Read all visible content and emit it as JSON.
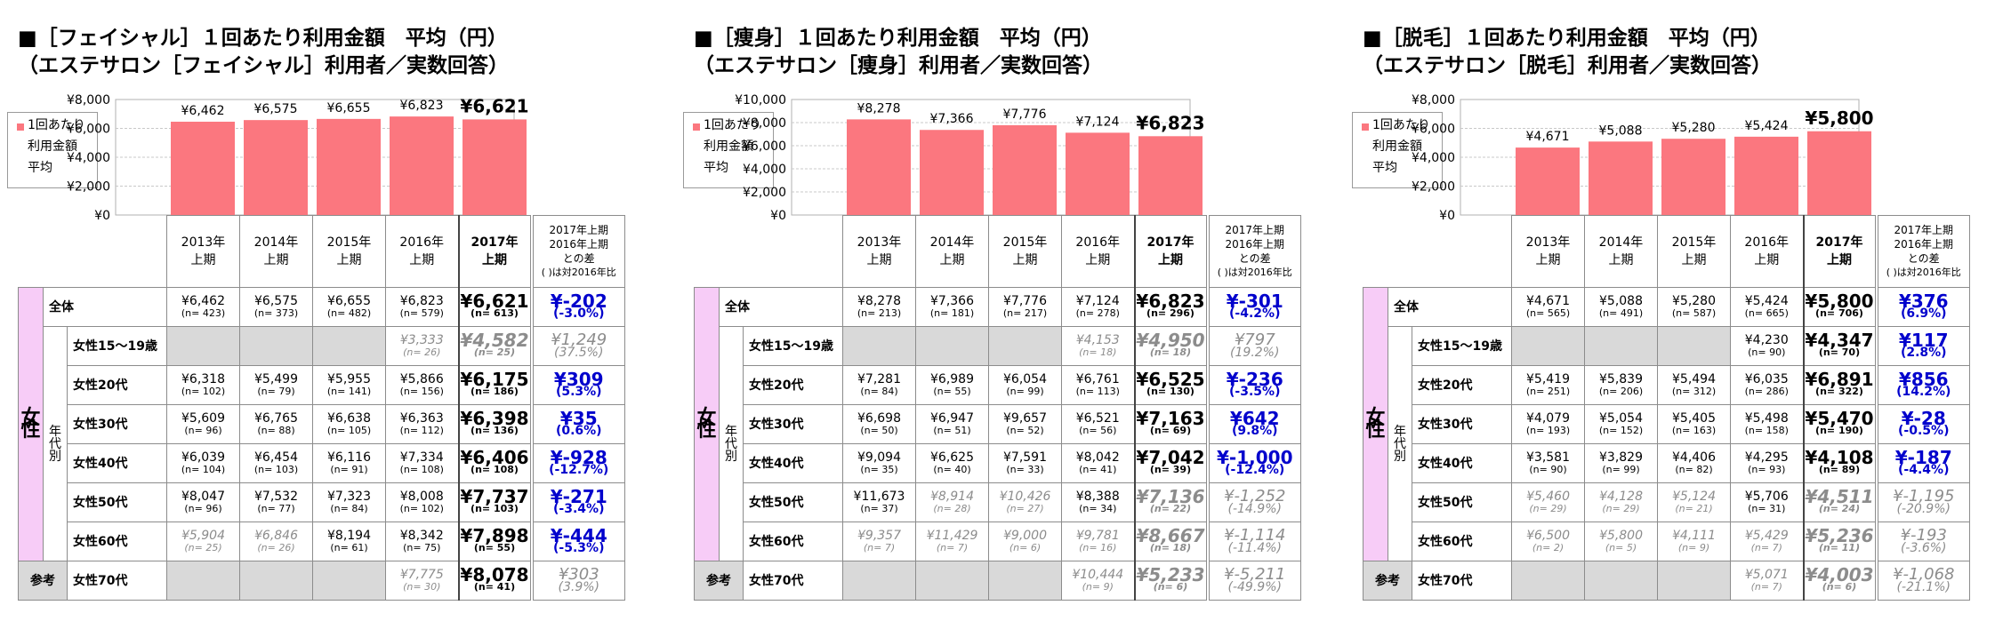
{
  "panels": [
    {
      "title_lines": [
        "■［フェイシャル］１回あたり利用金額　平均（円）",
        "（エステサロン［フェイシャル］利用者／実数回答）"
      ],
      "legend_lines": [
        "1回あたり",
        "利用金額",
        "平均"
      ],
      "chart_data": {
        "type": "bar",
        "title": "［フェイシャル］１回あたり利用金額　平均（円）",
        "categories": [
          "2013年上期",
          "2014年上期",
          "2015年上期",
          "2016年上期",
          "2017年上期"
        ],
        "series": [
          {
            "name": "1回あたり利用金額平均",
            "values": [
              6462,
              6575,
              6655,
              6823,
              6621
            ]
          }
        ],
        "value_labels": [
          "¥6,462",
          "¥6,575",
          "¥6,655",
          "¥6,823",
          "¥6,621"
        ],
        "yticks": [
          "¥8,000",
          "¥6,000",
          "¥4,000",
          "¥2,000",
          "¥0"
        ],
        "ylim": [
          0,
          8000
        ],
        "bar_color": "#fb777f"
      },
      "headers": [
        [
          "2013年",
          "上期"
        ],
        [
          "2014年",
          "上期"
        ],
        [
          "2015年",
          "上期"
        ],
        [
          "2016年",
          "上期"
        ],
        [
          "2017年",
          "上期"
        ]
      ],
      "diff_header": [
        "2017年上期",
        "2016年上期",
        "との差",
        "( )は対2016年比"
      ],
      "rows": [
        {
          "label": "全体",
          "cells": [
            [
              "¥6,462",
              "(n= 423)",
              false
            ],
            [
              "¥6,575",
              "(n= 373)",
              false
            ],
            [
              "¥6,655",
              "(n= 482)",
              false
            ],
            [
              "¥6,823",
              "(n= 579)",
              false
            ],
            [
              "¥6,621",
              "(n= 613)",
              false
            ]
          ],
          "diff": [
            "¥-202",
            "(-3.0%)",
            false
          ]
        },
        {
          "label": "女性15～19歳",
          "cells": [
            null,
            null,
            null,
            [
              "¥3,333",
              "(n= 26)",
              true
            ],
            [
              "¥4,582",
              "(n= 25)",
              true
            ]
          ],
          "diff": [
            "¥1,249",
            "(37.5%)",
            true
          ]
        },
        {
          "label": "女性20代",
          "cells": [
            [
              "¥6,318",
              "(n= 102)",
              false
            ],
            [
              "¥5,499",
              "(n= 79)",
              false
            ],
            [
              "¥5,955",
              "(n= 141)",
              false
            ],
            [
              "¥5,866",
              "(n= 156)",
              false
            ],
            [
              "¥6,175",
              "(n= 186)",
              false
            ]
          ],
          "diff": [
            "¥309",
            "(5.3%)",
            false
          ]
        },
        {
          "label": "女性30代",
          "cells": [
            [
              "¥5,609",
              "(n= 96)",
              false
            ],
            [
              "¥6,765",
              "(n= 88)",
              false
            ],
            [
              "¥6,638",
              "(n= 105)",
              false
            ],
            [
              "¥6,363",
              "(n= 112)",
              false
            ],
            [
              "¥6,398",
              "(n= 136)",
              false
            ]
          ],
          "diff": [
            "¥35",
            "(0.6%)",
            false
          ]
        },
        {
          "label": "女性40代",
          "cells": [
            [
              "¥6,039",
              "(n= 104)",
              false
            ],
            [
              "¥6,454",
              "(n= 103)",
              false
            ],
            [
              "¥6,116",
              "(n= 91)",
              false
            ],
            [
              "¥7,334",
              "(n= 108)",
              false
            ],
            [
              "¥6,406",
              "(n= 108)",
              false
            ]
          ],
          "diff": [
            "¥-928",
            "(-12.7%)",
            false
          ]
        },
        {
          "label": "女性50代",
          "cells": [
            [
              "¥8,047",
              "(n= 96)",
              false
            ],
            [
              "¥7,532",
              "(n= 77)",
              false
            ],
            [
              "¥7,323",
              "(n= 84)",
              false
            ],
            [
              "¥8,008",
              "(n= 102)",
              false
            ],
            [
              "¥7,737",
              "(n= 103)",
              false
            ]
          ],
          "diff": [
            "¥-271",
            "(-3.4%)",
            false
          ]
        },
        {
          "label": "女性60代",
          "cells": [
            [
              "¥5,904",
              "(n= 25)",
              true
            ],
            [
              "¥6,846",
              "(n= 26)",
              true
            ],
            [
              "¥8,194",
              "(n= 61)",
              false
            ],
            [
              "¥8,342",
              "(n= 75)",
              false
            ],
            [
              "¥7,898",
              "(n= 55)",
              false
            ]
          ],
          "diff": [
            "¥-444",
            "(-5.3%)",
            false
          ]
        },
        {
          "label": "女性70代",
          "cells": [
            null,
            null,
            null,
            [
              "¥7,775",
              "(n= 30)",
              true
            ],
            [
              "¥8,078",
              "(n= 41)",
              false
            ]
          ],
          "diff": [
            "¥303",
            "(3.9%)",
            true
          ]
        }
      ]
    },
    {
      "title_lines": [
        "■［痩身］１回あたり利用金額　平均（円）",
        "（エステサロン［痩身］利用者／実数回答）"
      ],
      "legend_lines": [
        "1回あたり",
        "利用金額",
        "平均"
      ],
      "chart_data": {
        "type": "bar",
        "title": "［痩身］１回あたり利用金額　平均（円）",
        "categories": [
          "2013年上期",
          "2014年上期",
          "2015年上期",
          "2016年上期",
          "2017年上期"
        ],
        "series": [
          {
            "name": "1回あたり利用金額平均",
            "values": [
              8278,
              7366,
              7776,
              7124,
              6823
            ]
          }
        ],
        "value_labels": [
          "¥8,278",
          "¥7,366",
          "¥7,776",
          "¥7,124",
          "¥6,823"
        ],
        "yticks": [
          "¥10,000",
          "¥8,000",
          "¥6,000",
          "¥4,000",
          "¥2,000",
          "¥0"
        ],
        "ylim": [
          0,
          10000
        ],
        "bar_color": "#fb777f"
      },
      "headers": [
        [
          "2013年",
          "上期"
        ],
        [
          "2014年",
          "上期"
        ],
        [
          "2015年",
          "上期"
        ],
        [
          "2016年",
          "上期"
        ],
        [
          "2017年",
          "上期"
        ]
      ],
      "diff_header": [
        "2017年上期",
        "2016年上期",
        "との差",
        "( )は対2016年比"
      ],
      "rows": [
        {
          "label": "全体",
          "cells": [
            [
              "¥8,278",
              "(n= 213)",
              false
            ],
            [
              "¥7,366",
              "(n= 181)",
              false
            ],
            [
              "¥7,776",
              "(n= 217)",
              false
            ],
            [
              "¥7,124",
              "(n= 278)",
              false
            ],
            [
              "¥6,823",
              "(n= 296)",
              false
            ]
          ],
          "diff": [
            "¥-301",
            "(-4.2%)",
            false
          ]
        },
        {
          "label": "女性15～19歳",
          "cells": [
            null,
            null,
            null,
            [
              "¥4,153",
              "(n= 18)",
              true
            ],
            [
              "¥4,950",
              "(n= 18)",
              true
            ]
          ],
          "diff": [
            "¥797",
            "(19.2%)",
            true
          ]
        },
        {
          "label": "女性20代",
          "cells": [
            [
              "¥7,281",
              "(n= 84)",
              false
            ],
            [
              "¥6,989",
              "(n= 55)",
              false
            ],
            [
              "¥6,054",
              "(n= 99)",
              false
            ],
            [
              "¥6,761",
              "(n= 113)",
              false
            ],
            [
              "¥6,525",
              "(n= 130)",
              false
            ]
          ],
          "diff": [
            "¥-236",
            "(-3.5%)",
            false
          ]
        },
        {
          "label": "女性30代",
          "cells": [
            [
              "¥6,698",
              "(n= 50)",
              false
            ],
            [
              "¥6,947",
              "(n= 51)",
              false
            ],
            [
              "¥9,657",
              "(n= 52)",
              false
            ],
            [
              "¥6,521",
              "(n= 56)",
              false
            ],
            [
              "¥7,163",
              "(n= 69)",
              false
            ]
          ],
          "diff": [
            "¥642",
            "(9.8%)",
            false
          ]
        },
        {
          "label": "女性40代",
          "cells": [
            [
              "¥9,094",
              "(n= 35)",
              false
            ],
            [
              "¥6,625",
              "(n= 40)",
              false
            ],
            [
              "¥7,591",
              "(n= 33)",
              false
            ],
            [
              "¥8,042",
              "(n= 41)",
              false
            ],
            [
              "¥7,042",
              "(n= 39)",
              false
            ]
          ],
          "diff": [
            "¥-1,000",
            "(-12.4%)",
            false
          ]
        },
        {
          "label": "女性50代",
          "cells": [
            [
              "¥11,673",
              "(n= 37)",
              false
            ],
            [
              "¥8,914",
              "(n= 28)",
              true
            ],
            [
              "¥10,426",
              "(n= 27)",
              true
            ],
            [
              "¥8,388",
              "(n= 34)",
              false
            ],
            [
              "¥7,136",
              "(n= 22)",
              true
            ]
          ],
          "diff": [
            "¥-1,252",
            "(-14.9%)",
            true
          ]
        },
        {
          "label": "女性60代",
          "cells": [
            [
              "¥9,357",
              "(n= 7)",
              true
            ],
            [
              "¥11,429",
              "(n= 7)",
              true
            ],
            [
              "¥9,000",
              "(n= 6)",
              true
            ],
            [
              "¥9,781",
              "(n= 16)",
              true
            ],
            [
              "¥8,667",
              "(n= 18)",
              true
            ]
          ],
          "diff": [
            "¥-1,114",
            "(-11.4%)",
            true
          ]
        },
        {
          "label": "女性70代",
          "cells": [
            null,
            null,
            null,
            [
              "¥10,444",
              "(n= 9)",
              true
            ],
            [
              "¥5,233",
              "(n= 6)",
              true
            ]
          ],
          "diff": [
            "¥-5,211",
            "(-49.9%)",
            true
          ]
        }
      ]
    },
    {
      "title_lines": [
        "■［脱毛］１回あたり利用金額　平均（円）",
        "（エステサロン［脱毛］利用者／実数回答）"
      ],
      "legend_lines": [
        "1回あたり",
        "利用金額",
        "平均"
      ],
      "chart_data": {
        "type": "bar",
        "title": "［脱毛］１回あたり利用金額　平均（円）",
        "categories": [
          "2013年上期",
          "2014年上期",
          "2015年上期",
          "2016年上期",
          "2017年上期"
        ],
        "series": [
          {
            "name": "1回あたり利用金額平均",
            "values": [
              4671,
              5088,
              5280,
              5424,
              5800
            ]
          }
        ],
        "value_labels": [
          "¥4,671",
          "¥5,088",
          "¥5,280",
          "¥5,424",
          "¥5,800"
        ],
        "yticks": [
          "¥8,000",
          "¥6,000",
          "¥4,000",
          "¥2,000",
          "¥0"
        ],
        "ylim": [
          0,
          8000
        ],
        "bar_color": "#fb777f"
      },
      "headers": [
        [
          "2013年",
          "上期"
        ],
        [
          "2014年",
          "上期"
        ],
        [
          "2015年",
          "上期"
        ],
        [
          "2016年",
          "上期"
        ],
        [
          "2017年",
          "上期"
        ]
      ],
      "diff_header": [
        "2017年上期",
        "2016年上期",
        "との差",
        "( )は対2016年比"
      ],
      "rows": [
        {
          "label": "全体",
          "cells": [
            [
              "¥4,671",
              "(n= 565)",
              false
            ],
            [
              "¥5,088",
              "(n= 491)",
              false
            ],
            [
              "¥5,280",
              "(n= 587)",
              false
            ],
            [
              "¥5,424",
              "(n= 665)",
              false
            ],
            [
              "¥5,800",
              "(n= 706)",
              false
            ]
          ],
          "diff": [
            "¥376",
            "(6.9%)",
            false
          ]
        },
        {
          "label": "女性15～19歳",
          "cells": [
            null,
            null,
            null,
            [
              "¥4,230",
              "(n= 90)",
              false
            ],
            [
              "¥4,347",
              "(n= 70)",
              false
            ]
          ],
          "diff": [
            "¥117",
            "(2.8%)",
            false
          ]
        },
        {
          "label": "女性20代",
          "cells": [
            [
              "¥5,419",
              "(n= 251)",
              false
            ],
            [
              "¥5,839",
              "(n= 206)",
              false
            ],
            [
              "¥5,494",
              "(n= 312)",
              false
            ],
            [
              "¥6,035",
              "(n= 286)",
              false
            ],
            [
              "¥6,891",
              "(n= 322)",
              false
            ]
          ],
          "diff": [
            "¥856",
            "(14.2%)",
            false
          ]
        },
        {
          "label": "女性30代",
          "cells": [
            [
              "¥4,079",
              "(n= 193)",
              false
            ],
            [
              "¥5,054",
              "(n= 152)",
              false
            ],
            [
              "¥5,405",
              "(n= 163)",
              false
            ],
            [
              "¥5,498",
              "(n= 158)",
              false
            ],
            [
              "¥5,470",
              "(n= 190)",
              false
            ]
          ],
          "diff": [
            "¥-28",
            "(-0.5%)",
            false
          ]
        },
        {
          "label": "女性40代",
          "cells": [
            [
              "¥3,581",
              "(n= 90)",
              false
            ],
            [
              "¥3,829",
              "(n= 99)",
              false
            ],
            [
              "¥4,406",
              "(n= 82)",
              false
            ],
            [
              "¥4,295",
              "(n= 93)",
              false
            ],
            [
              "¥4,108",
              "(n= 89)",
              false
            ]
          ],
          "diff": [
            "¥-187",
            "(-4.4%)",
            false
          ]
        },
        {
          "label": "女性50代",
          "cells": [
            [
              "¥5,460",
              "(n= 29)",
              true
            ],
            [
              "¥4,128",
              "(n= 29)",
              true
            ],
            [
              "¥5,124",
              "(n= 21)",
              true
            ],
            [
              "¥5,706",
              "(n= 31)",
              false
            ],
            [
              "¥4,511",
              "(n= 24)",
              true
            ]
          ],
          "diff": [
            "¥-1,195",
            "(-20.9%)",
            true
          ]
        },
        {
          "label": "女性60代",
          "cells": [
            [
              "¥6,500",
              "(n= 2)",
              true
            ],
            [
              "¥5,800",
              "(n= 5)",
              true
            ],
            [
              "¥4,111",
              "(n= 9)",
              true
            ],
            [
              "¥5,429",
              "(n= 7)",
              true
            ],
            [
              "¥5,236",
              "(n= 11)",
              true
            ]
          ],
          "diff": [
            "¥-193",
            "(-3.6%)",
            true
          ]
        },
        {
          "label": "女性70代",
          "cells": [
            null,
            null,
            null,
            [
              "¥5,071",
              "(n= 7)",
              true
            ],
            [
              "¥4,003",
              "(n= 6)",
              true
            ]
          ],
          "diff": [
            "¥-1,068",
            "(-21.1%)",
            true
          ]
        }
      ]
    }
  ],
  "side_labels": {
    "zentai": "全体",
    "female": [
      "女",
      "性"
    ],
    "by_age": [
      "年",
      "代",
      "別"
    ],
    "reference": "参考"
  }
}
